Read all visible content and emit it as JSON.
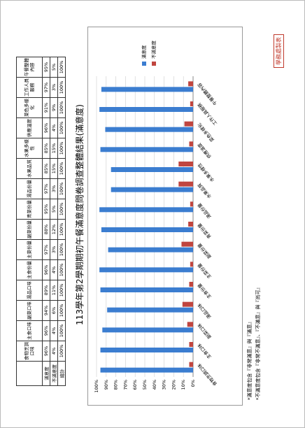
{
  "title": "113學年第2學期期初午餐滿意度問卷調查整體結果(滿意度)",
  "table": {
    "headers": [
      "食物烹調口味",
      "主食口味",
      "副菜口味",
      "湯品口味",
      "主食份量",
      "主菜份量",
      "副菜份量",
      "青菜份量",
      "湯品份量",
      "水果品質",
      "水果多樣性",
      "供應溫度",
      "菜色多樣化",
      "工作人員服務",
      "午餐整體內容"
    ],
    "rows": [
      {
        "label": "滿意度",
        "values": [
          "96%",
          "96%",
          "94%",
          "89%",
          "96%",
          "97%",
          "88%",
          "95%",
          "97%",
          "85%",
          "85%",
          "96%",
          "91%",
          "97%",
          "95%"
        ]
      },
      {
        "label": "不滿意度",
        "values": [
          "4%",
          "4%",
          "6%",
          "11%",
          "4%",
          "3%",
          "12%",
          "5%",
          "3%",
          "15%",
          "15%",
          "4%",
          "9%",
          "3%",
          "5%"
        ]
      },
      {
        "label": "總計",
        "values": [
          "100%",
          "100%",
          "100%",
          "100%",
          "100%",
          "100%",
          "100%",
          "100%",
          "100%",
          "100%",
          "100%",
          "100%",
          "100%",
          "100%",
          "100%"
        ]
      }
    ]
  },
  "chart_data": {
    "type": "bar",
    "categories": [
      "食物烹調口味",
      "主食口味",
      "副菜口味",
      "湯品口味",
      "主食份量",
      "主菜份量",
      "副菜份量",
      "青菜份量",
      "湯品份量",
      "水果品質",
      "水果多樣性",
      "供應溫度",
      "菜色多樣化",
      "工作人員服務",
      "午餐整體內容"
    ],
    "series": [
      {
        "name": "滿意度",
        "color": "#3b7dd0",
        "values": [
          96,
          96,
          94,
          89,
          96,
          97,
          88,
          95,
          97,
          85,
          85,
          96,
          91,
          97,
          95
        ]
      },
      {
        "name": "不滿意度",
        "color": "#c0453f",
        "values": [
          4,
          4,
          6,
          11,
          4,
          3,
          12,
          5,
          3,
          15,
          15,
          4,
          9,
          3,
          5
        ]
      }
    ],
    "ylim": [
      0,
      100
    ],
    "yticks": [
      {
        "value": 0,
        "label": "0%"
      },
      {
        "value": 10,
        "label": "10%"
      },
      {
        "value": 20,
        "label": "20%"
      },
      {
        "value": 30,
        "label": "30%"
      },
      {
        "value": 40,
        "label": "40%"
      },
      {
        "value": 50,
        "label": "50%"
      },
      {
        "value": 60,
        "label": "60%"
      },
      {
        "value": 70,
        "label": "70%"
      },
      {
        "value": 80,
        "label": "80%"
      },
      {
        "value": 90,
        "label": "90%"
      },
      {
        "value": 100,
        "label": "100%"
      }
    ],
    "grid": true
  },
  "notes": [
    "*滿意度包含『非常滿意』與『滿意』",
    "*不滿意度包含『非常不滿意』、『不滿意』與『尚可』"
  ],
  "stamp": "學務處製表"
}
